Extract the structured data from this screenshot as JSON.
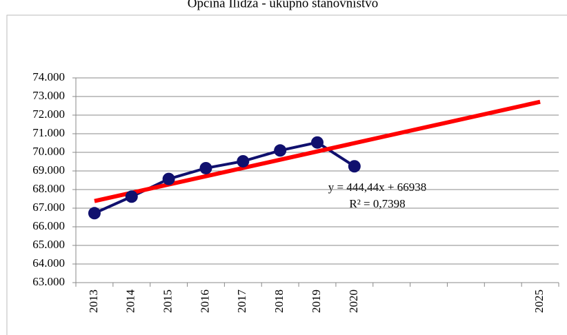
{
  "chart_data": {
    "type": "line",
    "title": "Općina Ilidža - ukupno stanovništvo",
    "categories": [
      "2013",
      "2014",
      "2015",
      "2016",
      "2017",
      "2018",
      "2019",
      "2020",
      null,
      null,
      null,
      null,
      "2025"
    ],
    "series": [
      {
        "color": "#10106e",
        "values": [
          66730,
          67620,
          68570,
          69150,
          69520,
          70100,
          70530,
          69250,
          null,
          null,
          null,
          null,
          null
        ]
      }
    ],
    "trendline": {
      "color": "#ff0000",
      "slope": 444.44,
      "intercept": 66938,
      "equation": "y = 444,44x + 66938",
      "r_squared": "R² = 0,7398"
    },
    "ylim": [
      63000,
      74000
    ],
    "yticks": [
      {
        "value": 63000,
        "label": "63.000"
      },
      {
        "value": 64000,
        "label": "64.000"
      },
      {
        "value": 65000,
        "label": "65.000"
      },
      {
        "value": 66000,
        "label": "66.000"
      },
      {
        "value": 67000,
        "label": "67.000"
      },
      {
        "value": 68000,
        "label": "68.000"
      },
      {
        "value": 69000,
        "label": "69.000"
      },
      {
        "value": 70000,
        "label": "70.000"
      },
      {
        "value": 71000,
        "label": "71.000"
      },
      {
        "value": 72000,
        "label": "72.000"
      },
      {
        "value": 73000,
        "label": "73.000"
      },
      {
        "value": 74000,
        "label": "74.000"
      }
    ],
    "grid": true
  }
}
